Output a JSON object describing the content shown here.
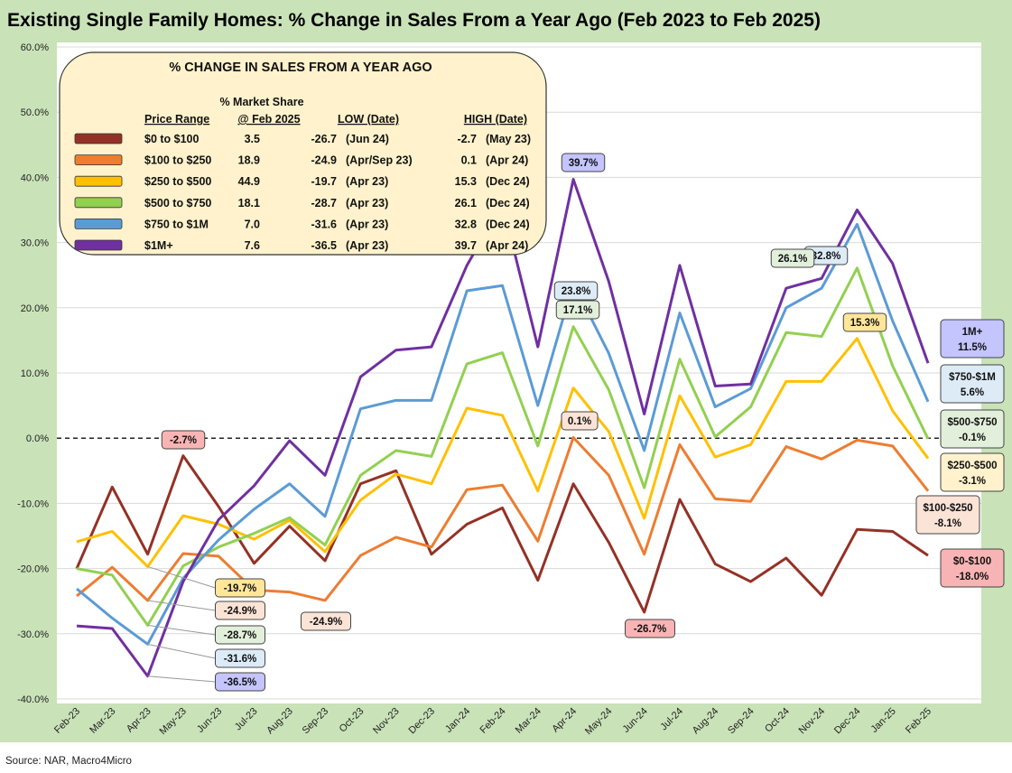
{
  "chart_data": {
    "type": "line",
    "title": "Existing Single Family Homes: % Change in Sales From a Year Ago (Feb 2023 to Feb 2025)",
    "source": "Source: NAR, Macro4Micro",
    "xlabel": "",
    "ylabel": "",
    "ylim": [
      -40,
      60
    ],
    "yticks": [
      "60.0%",
      "50.0%",
      "40.0%",
      "30.0%",
      "20.0%",
      "10.0%",
      "0.0%",
      "-10.0%",
      "-20.0%",
      "-30.0%",
      "-40.0%"
    ],
    "ytick_values": [
      60,
      50,
      40,
      30,
      20,
      10,
      0,
      -10,
      -20,
      -30,
      -40
    ],
    "grid": true,
    "zero_line": "dashed",
    "categories": [
      "Feb-23",
      "Mar-23",
      "Apr-23",
      "May-23",
      "Jun-23",
      "Jul-23",
      "Aug-23",
      "Sep-23",
      "Oct-23",
      "Nov-23",
      "Dec-23",
      "Jan-24",
      "Feb-24",
      "Mar-24",
      "Apr-24",
      "May-24",
      "Jun-24",
      "Jul-24",
      "Aug-24",
      "Sep-24",
      "Oct-24",
      "Nov-24",
      "Dec-24",
      "Jan-25",
      "Feb-25"
    ],
    "series": [
      {
        "name": "$0 to $100",
        "color": "#943126",
        "values": [
          -20,
          -7.5,
          -17.8,
          -2.7,
          -10.5,
          -19.2,
          -13.5,
          -18.8,
          -7,
          -5,
          -17.8,
          -13.2,
          -10.7,
          -21.8,
          -7,
          -16,
          -26.7,
          -9.4,
          -19.3,
          -22,
          -18.4,
          -24.1,
          -14,
          -14.3,
          -18.0
        ]
      },
      {
        "name": "$100 to $250",
        "color": "#ed7d31",
        "values": [
          -24.2,
          -19.8,
          -24.9,
          -17.7,
          -18.1,
          -23.3,
          -23.6,
          -24.9,
          -18,
          -15.2,
          -16.7,
          -7.9,
          -7.2,
          -15.8,
          0.1,
          -5.7,
          -17.8,
          -1,
          -9.3,
          -9.7,
          -1.3,
          -3.2,
          -0.3,
          -1.2,
          -8.1
        ]
      },
      {
        "name": "$250 to $500",
        "color": "#ffc000",
        "values": [
          -15.9,
          -14.3,
          -19.7,
          -11.9,
          -13.2,
          -15.5,
          -12.6,
          -17.4,
          -9.5,
          -5.5,
          -7,
          4.6,
          3.5,
          -8.1,
          7.7,
          1,
          -12.3,
          6.5,
          -2.9,
          -1,
          8.7,
          8.7,
          15.3,
          4.2,
          -3.1
        ]
      },
      {
        "name": "$500 to $750",
        "color": "#92d050",
        "values": [
          -20,
          -21,
          -28.7,
          -19.6,
          -16.7,
          -14.6,
          -12.2,
          -16.4,
          -5.7,
          -1.9,
          -2.8,
          11.4,
          13.1,
          -1.2,
          17.1,
          7.4,
          -7.6,
          12.1,
          0.2,
          4.8,
          16.2,
          15.6,
          26.1,
          11.1,
          -0.1
        ]
      },
      {
        "name": "$750 to $1M",
        "color": "#5b9bd5",
        "values": [
          -23.1,
          -27.6,
          -31.6,
          -21.5,
          -15.6,
          -10.9,
          -7,
          -12,
          4.5,
          5.8,
          5.8,
          22.6,
          23.4,
          5,
          23.8,
          13,
          -1.9,
          19.2,
          4.8,
          7.6,
          20,
          23,
          32.8,
          18,
          5.6
        ]
      },
      {
        "name": "$1M+",
        "color": "#7030a0",
        "values": [
          -28.8,
          -29.2,
          -36.5,
          -22,
          -12.5,
          -7.3,
          -0.4,
          -5.7,
          9.4,
          13.5,
          14,
          26.5,
          36,
          14,
          39.7,
          24,
          3.7,
          26.5,
          8,
          8.3,
          23,
          24.5,
          35,
          26.8,
          11.5
        ]
      }
    ],
    "legend": {
      "title": "% CHANGE IN SALES FROM A YEAR AGO",
      "placement": "top-left",
      "headers": {
        "range": "Price Range",
        "share_top": "% Market Share",
        "share": "@ Feb 2025",
        "low": "LOW  (Date)",
        "high": "HIGH  (Date)"
      },
      "rows": [
        {
          "range": "$0 to $100",
          "share": "3.5",
          "low": "-26.7",
          "low_date": "(Jun 24)",
          "high": "-2.7",
          "high_date": "(May 23)"
        },
        {
          "range": "$100  to $250",
          "share": "18.9",
          "low": "-24.9",
          "low_date": "(Apr/Sep 23)",
          "high": "0.1",
          "high_date": "(Apr 24)"
        },
        {
          "range": "$250  to $500",
          "share": "44.9",
          "low": "-19.7",
          "low_date": "(Apr 23)",
          "high": "15.3",
          "high_date": "(Dec 24)"
        },
        {
          "range": "$500  to $750",
          "share": "18.1",
          "low": "-28.7",
          "low_date": "(Apr 23)",
          "high": "26.1",
          "high_date": "(Dec 24)"
        },
        {
          "range": "$750  to $1M",
          "share": "7.0",
          "low": "-31.6",
          "low_date": "(Apr 23)",
          "high": "32.8",
          "high_date": "(Dec 24)"
        },
        {
          "range": "$1M+",
          "share": "7.6",
          "low": "-36.5",
          "low_date": "(Apr 23)",
          "high": "39.7",
          "high_date": "(Apr 24)"
        }
      ]
    },
    "annotations": [
      {
        "text": "-2.7%",
        "series": 0,
        "index": 3,
        "fill": "#f8b4b4"
      },
      {
        "text": "-19.7%",
        "series": 2,
        "index": 2,
        "fill": "#ffe699"
      },
      {
        "text": "-24.9%",
        "series": 1,
        "index": 2,
        "fill": "#fbe3d6"
      },
      {
        "text": "-28.7%",
        "series": 3,
        "index": 2,
        "fill": "#e2efda"
      },
      {
        "text": "-31.6%",
        "series": 4,
        "index": 2,
        "fill": "#ddebf7"
      },
      {
        "text": "-36.5%",
        "series": 5,
        "index": 2,
        "fill": "#c4c4ff"
      },
      {
        "text": "-24.9%",
        "series": 1,
        "index": 7,
        "fill": "#fbe3d6"
      },
      {
        "text": "-26.7%",
        "series": 0,
        "index": 16,
        "fill": "#f8b4b4"
      },
      {
        "text": "0.1%",
        "series": 1,
        "index": 14,
        "fill": "#fbe3d6"
      },
      {
        "text": "39.7%",
        "series": 5,
        "index": 14,
        "fill": "#c4c4ff"
      },
      {
        "text": "23.8%",
        "series": 4,
        "index": 14,
        "fill": "#ddebf7"
      },
      {
        "text": "17.1%",
        "series": 3,
        "index": 14,
        "fill": "#e2efda"
      },
      {
        "text": "32.8%",
        "series": 4,
        "index": 22,
        "fill": "#ddebf7"
      },
      {
        "text": "26.1%",
        "series": 3,
        "index": 22,
        "fill": "#e2efda"
      },
      {
        "text": "15.3%",
        "series": 2,
        "index": 22,
        "fill": "#ffe699"
      },
      {
        "text": "1M+",
        "text2": "11.5%",
        "series": 5,
        "index": 24,
        "fill": "#c4c4ff"
      },
      {
        "text": "$750-$1M",
        "text2": "5.6%",
        "series": 4,
        "index": 24,
        "fill": "#ddebf7"
      },
      {
        "text": "$500-$750",
        "text2": "-0.1%",
        "series": 3,
        "index": 24,
        "fill": "#e2efda"
      },
      {
        "text": "$250-$500",
        "text2": "-3.1%",
        "series": 2,
        "index": 24,
        "fill": "#fff2cc"
      },
      {
        "text": "$100-$250",
        "text2": "-8.1%",
        "series": 1,
        "index": 24,
        "fill": "#fbe3d6"
      },
      {
        "text": "$0-$100",
        "text2": "-18.0%",
        "series": 0,
        "index": 24,
        "fill": "#f8b4b4"
      }
    ]
  }
}
